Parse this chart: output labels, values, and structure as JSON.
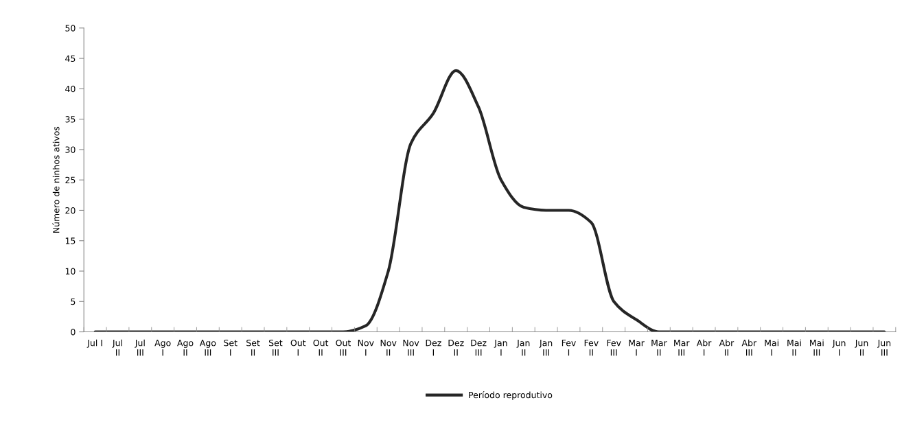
{
  "chart_data": {
    "type": "line",
    "ylabel": "Número de ninhos ativos",
    "categories": [
      "Jul I",
      "Jul\nII",
      "Jul\nIII",
      "Ago\nI",
      "Ago\nII",
      "Ago\nIII",
      "Set\nI",
      "Set\nII",
      "Set\nIII",
      "Out\nI",
      "Out\nII",
      "Out\nIII",
      "Nov\nI",
      "Nov\nII",
      "Nov\nIII",
      "Dez\nI",
      "Dez\nII",
      "Dez\nIII",
      "Jan\nI",
      "Jan\nII",
      "Jan\nIII",
      "Fev\nI",
      "Fev\nII",
      "Fev\nIII",
      "Mar\nI",
      "Mar\nII",
      "Mar\nIII",
      "Abr\nI",
      "Abr\nII",
      "Abr\nIII",
      "Mai\nI",
      "Mai\nII",
      "Mai\nIII",
      "Jun\nI",
      "Jun\nII",
      "Jun\nIII"
    ],
    "series": [
      {
        "name": "Período reprodutivo",
        "color": "#262626",
        "values": [
          0,
          0,
          0,
          0,
          0,
          0,
          0,
          0,
          0,
          0,
          0,
          0,
          1,
          10,
          31,
          36,
          43,
          37,
          25,
          20.5,
          20,
          20,
          18,
          5,
          2,
          0,
          0,
          0,
          0,
          0,
          0,
          0,
          0,
          0,
          0,
          0
        ]
      }
    ],
    "ylim": [
      0,
      50
    ],
    "yticks": [
      0,
      5,
      10,
      15,
      20,
      25,
      30,
      35,
      40,
      45,
      50
    ],
    "grid": false,
    "legend": "bottom",
    "marker": "none",
    "line_style": "solid"
  }
}
